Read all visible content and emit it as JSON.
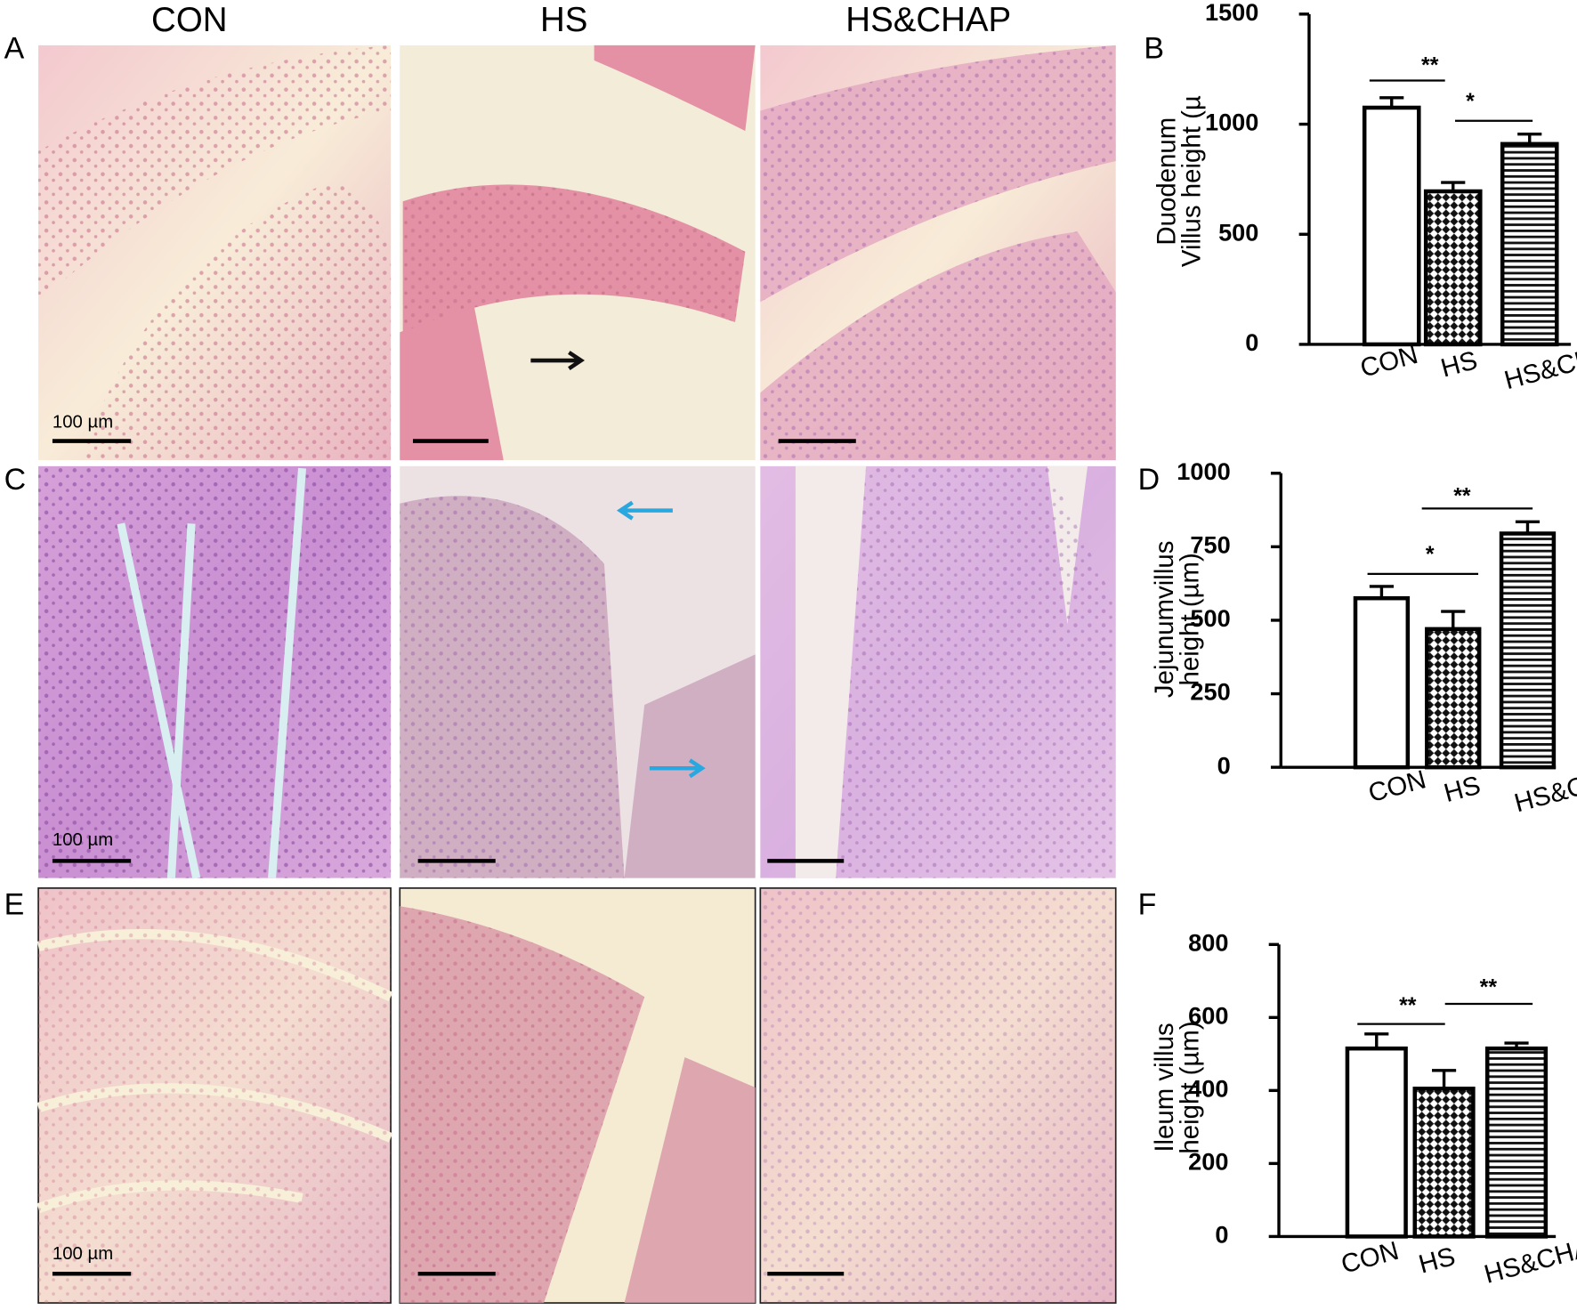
{
  "figure": {
    "column_headers": [
      "CON",
      "HS",
      "HS&CHAP"
    ],
    "panel_labels": [
      "A",
      "B",
      "C",
      "D",
      "E",
      "F"
    ],
    "scale_bar_labels": [
      "100 µm",
      "100 µm",
      "100 µm"
    ]
  },
  "chart_data": [
    {
      "type": "bar",
      "ylabel": [
        "Duodenum",
        "Villus height (µ"
      ],
      "categories": [
        "CON",
        "HS",
        "HS&CHAP"
      ],
      "values": [
        1075,
        695,
        910
      ],
      "errors": [
        45,
        40,
        45
      ],
      "color": "#000000",
      "bar_fills": [
        "white",
        "checker",
        "stripes"
      ],
      "ylim": [
        0,
        1500
      ],
      "yticks": [
        0,
        500,
        1000,
        1500
      ],
      "annotations": [
        "**",
        "*"
      ]
    },
    {
      "type": "bar",
      "ylabel": [
        "Jejunumvillus",
        "height (µm)"
      ],
      "categories": [
        "CON",
        "HS",
        "HS&CHAP"
      ],
      "values": [
        575,
        470,
        795
      ],
      "errors": [
        40,
        60,
        40
      ],
      "color": "#000000",
      "bar_fills": [
        "white",
        "checker",
        "stripes"
      ],
      "ylim": [
        0,
        1000
      ],
      "yticks": [
        0,
        250,
        500,
        750,
        1000
      ],
      "annotations": [
        "**",
        "*"
      ]
    },
    {
      "type": "bar",
      "ylabel": [
        "Ileum villus",
        "height (µm)"
      ],
      "categories": [
        "CON",
        "HS",
        "HS&CHAP"
      ],
      "values": [
        515,
        405,
        515
      ],
      "errors": [
        40,
        50,
        15
      ],
      "color": "#000000",
      "bar_fills": [
        "white",
        "checker",
        "stripes"
      ],
      "ylim": [
        0,
        800
      ],
      "yticks": [
        0,
        200,
        400,
        600,
        800
      ],
      "annotations": [
        "**",
        "**"
      ]
    }
  ]
}
